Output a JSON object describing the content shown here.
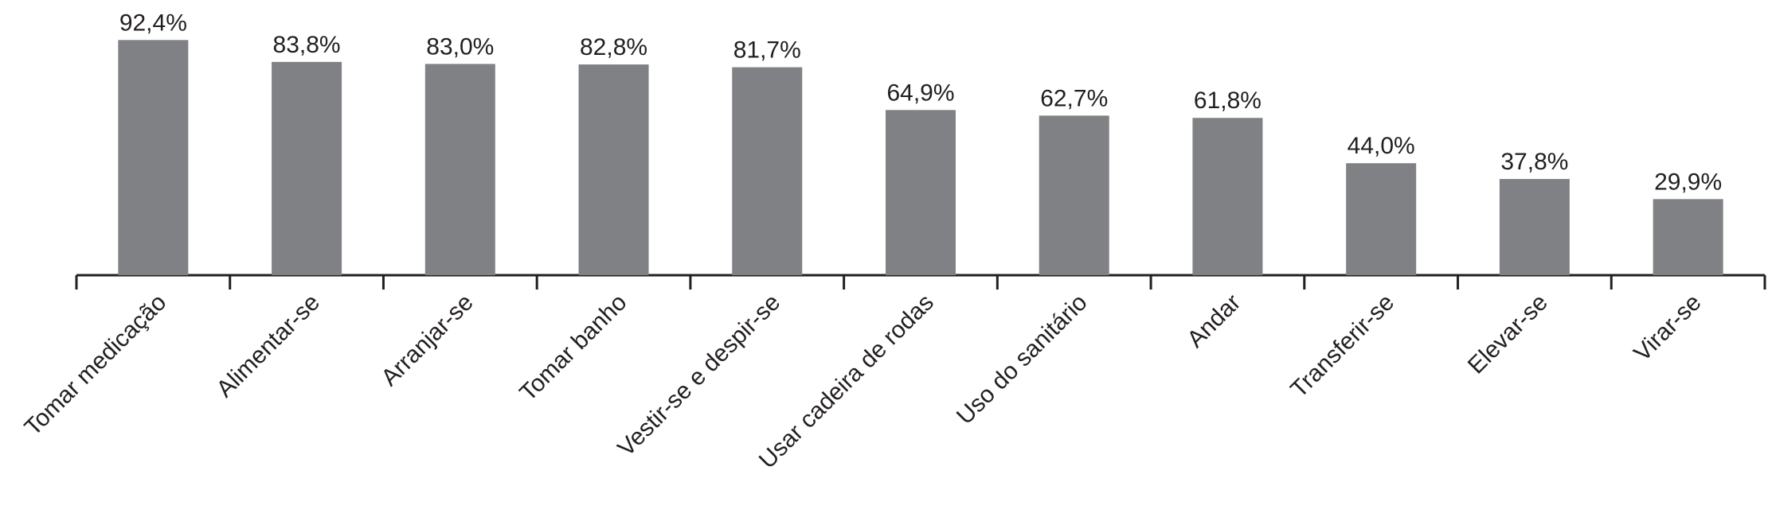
{
  "chart_data": {
    "type": "bar",
    "categories": [
      "Tomar medicação",
      "Alimentar-se",
      "Arranjar-se",
      "Tomar banho",
      "Vestir-se e despir-se",
      "Usar cadeira de rodas",
      "Uso do sanitário",
      "Andar",
      "Transferir-se",
      "Elevar-se",
      "Virar-se"
    ],
    "values": [
      92.4,
      83.8,
      83.0,
      82.8,
      81.7,
      64.9,
      62.7,
      61.8,
      44.0,
      37.8,
      29.9
    ],
    "value_labels": [
      "92,4%",
      "83,8%",
      "83,0%",
      "82,8%",
      "81,7%",
      "64,9%",
      "62,7%",
      "61,8%",
      "44,0%",
      "37,8%",
      "29,9%"
    ],
    "color": "#808184"
  }
}
